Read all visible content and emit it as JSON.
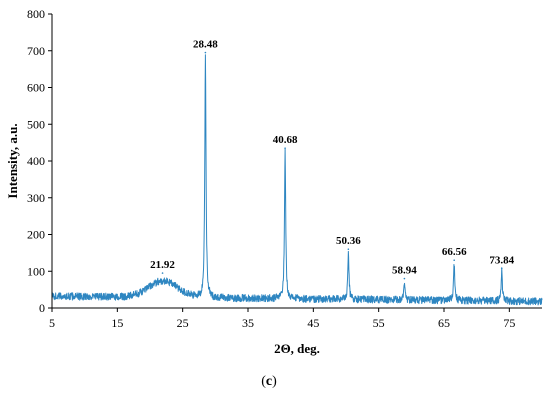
{
  "chart_data": {
    "type": "line",
    "xlabel": "2Θ, deg.",
    "ylabel": "Intensity, a.u.",
    "xlim": [
      5,
      80
    ],
    "ylim": [
      0,
      800
    ],
    "x_ticks": [
      5,
      15,
      25,
      35,
      45,
      55,
      65,
      75
    ],
    "y_ticks": [
      0,
      100,
      200,
      300,
      400,
      500,
      600,
      700,
      800
    ],
    "grid": false,
    "line_color": "#2E86C1",
    "baseline_start": 32,
    "baseline_end": 18,
    "noise_amplitude": 10,
    "step": 0.04,
    "broad_hump": {
      "center": 22.0,
      "height": 45,
      "width": 2.2
    },
    "peaks": [
      {
        "x": 21.92,
        "y": 95,
        "label": "21.92"
      },
      {
        "x": 28.48,
        "y": 695,
        "label": "28.48"
      },
      {
        "x": 40.68,
        "y": 435,
        "label": "40.68"
      },
      {
        "x": 50.36,
        "y": 160,
        "label": "50.36"
      },
      {
        "x": 58.94,
        "y": 80,
        "label": "58.94"
      },
      {
        "x": 66.56,
        "y": 130,
        "label": "66.56"
      },
      {
        "x": 73.84,
        "y": 108,
        "label": "73.84"
      }
    ]
  },
  "panel_label": {
    "open": "(",
    "letter": "c",
    "close": ")"
  }
}
